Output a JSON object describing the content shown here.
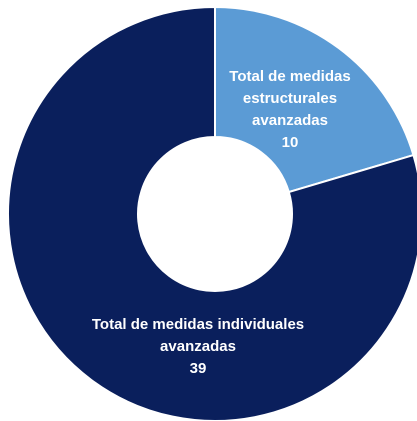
{
  "chart_data": {
    "type": "donut",
    "categories": [
      "Total de medidas estructurales avanzadas",
      "Total de medidas individuales avanzadas"
    ],
    "values": [
      10,
      39
    ],
    "colors": [
      "#5b9bd5",
      "#0a1f5c"
    ]
  }
}
